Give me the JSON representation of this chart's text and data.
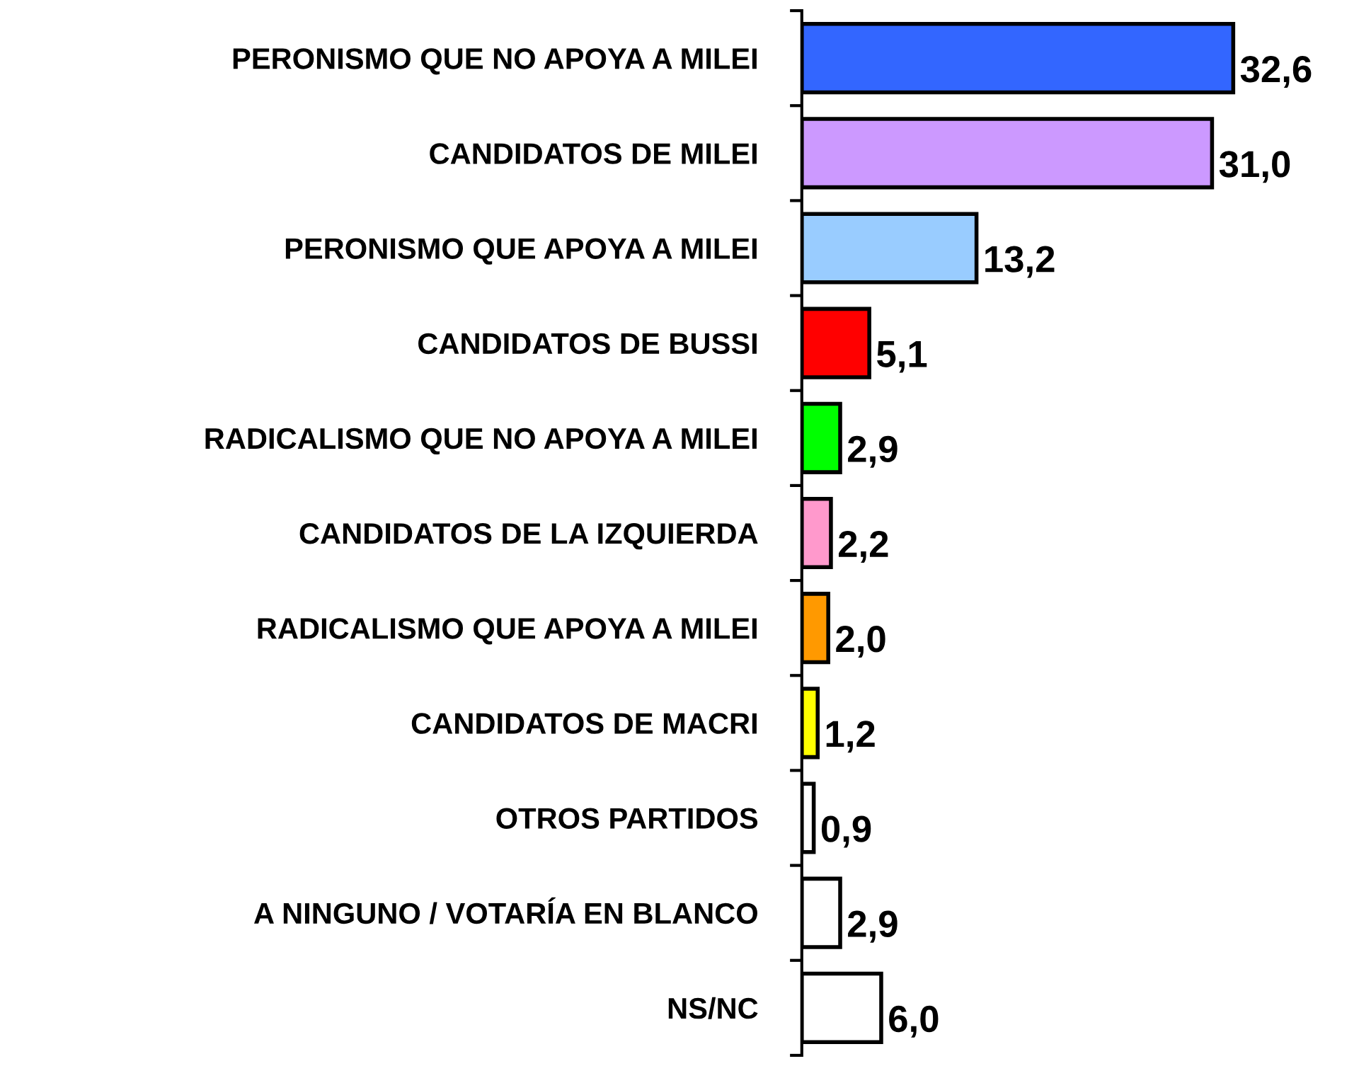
{
  "chart_data": {
    "type": "bar",
    "orientation": "horizontal",
    "categories": [
      "PERONISMO QUE NO APOYA A MILEI",
      "CANDIDATOS DE MILEI",
      "PERONISMO QUE APOYA A MILEI",
      "CANDIDATOS DE BUSSI",
      "RADICALISMO QUE NO APOYA A MILEI",
      "CANDIDATOS DE LA IZQUIERDA",
      "RADICALISMO QUE APOYA A MILEI",
      "CANDIDATOS DE MACRI",
      "OTROS PARTIDOS",
      "A NINGUNO / VOTARÍA EN BLANCO",
      "NS/NC"
    ],
    "values": [
      32.6,
      31.0,
      13.2,
      5.1,
      2.9,
      2.2,
      2.0,
      1.2,
      0.9,
      2.9,
      6.0
    ],
    "value_labels": [
      "32,6",
      "31,0",
      "13,2",
      "5,1",
      "2,9",
      "2,2",
      "2,0",
      "1,2",
      "0,9",
      "2,9",
      "6,0"
    ],
    "colors": [
      "#3366ff",
      "#cc99ff",
      "#99ccff",
      "#ff0000",
      "#00ff00",
      "#ff99cc",
      "#ff9900",
      "#ffff00",
      "#ffffff",
      "#ffffff",
      "#ffffff"
    ],
    "tick_labels": "y",
    "grid": false,
    "legend": false
  }
}
